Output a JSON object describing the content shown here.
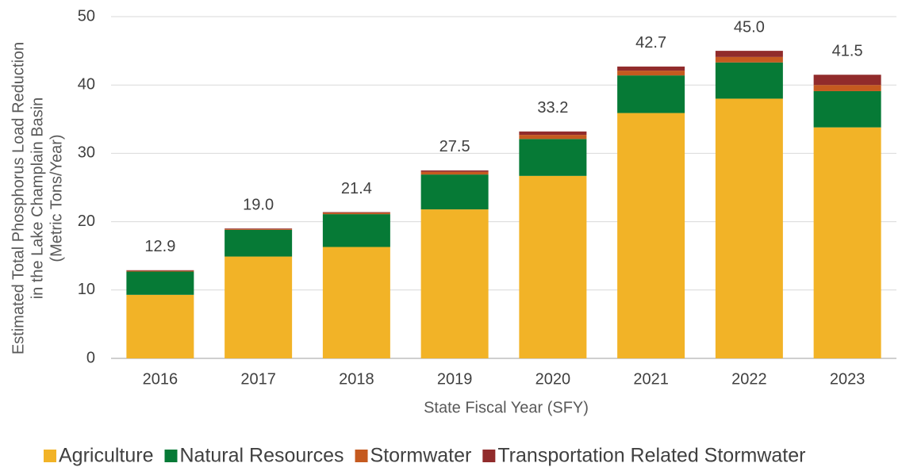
{
  "chart_data": {
    "type": "stacked_bar",
    "ylabel": [
      "Estimated Total Phosphorus Load Reduction",
      "in the Lake Champlain Basin",
      "(Metric Tons/Year)"
    ],
    "xlabel": "State Fiscal Year (SFY)",
    "categories": [
      "2016",
      "2017",
      "2018",
      "2019",
      "2020",
      "2021",
      "2022",
      "2023"
    ],
    "series": [
      {
        "name": "Agriculture",
        "color": "#f2b327",
        "values": [
          9.3,
          14.9,
          16.3,
          21.8,
          26.7,
          35.9,
          38.0,
          33.8
        ]
      },
      {
        "name": "Natural Resources",
        "color": "#067a36",
        "values": [
          3.4,
          3.9,
          4.8,
          5.1,
          5.4,
          5.5,
          5.3,
          5.3
        ]
      },
      {
        "name": "Stormwater",
        "color": "#c55a1f",
        "values": [
          0.1,
          0.1,
          0.2,
          0.4,
          0.6,
          0.7,
          0.8,
          0.9
        ]
      },
      {
        "name": "Transportation Related Stormwater",
        "color": "#912b2b",
        "values": [
          0.1,
          0.1,
          0.1,
          0.2,
          0.5,
          0.6,
          0.9,
          1.5
        ]
      }
    ],
    "totals": [
      12.9,
      19.0,
      21.4,
      27.5,
      33.2,
      42.7,
      45.0,
      41.5
    ],
    "total_labels": [
      "12.9",
      "19.0",
      "21.4",
      "27.5",
      "33.2",
      "42.7",
      "45.0",
      "41.5"
    ],
    "ylim": [
      0,
      50
    ],
    "yticks": [
      0,
      10,
      20,
      30,
      40,
      50
    ],
    "grid": true,
    "legend": "bottom"
  }
}
